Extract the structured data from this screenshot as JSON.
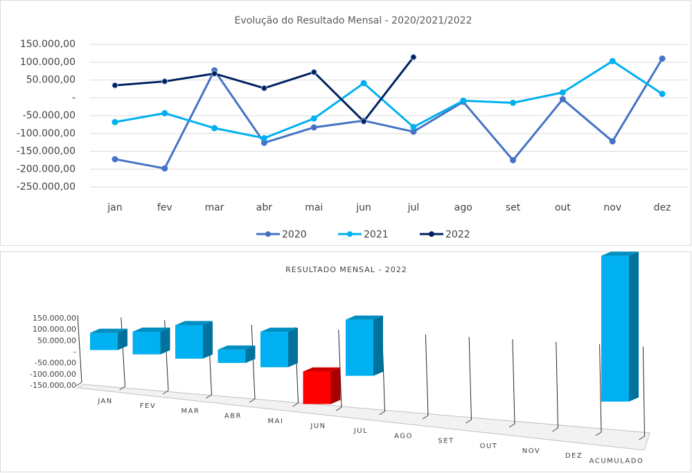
{
  "chart_data": [
    {
      "type": "line",
      "title": "Evolução do Resultado Mensal - 2020/2021/2022",
      "categories": [
        "jan",
        "fev",
        "mar",
        "abr",
        "mai",
        "jun",
        "jul",
        "ago",
        "set",
        "out",
        "nov",
        "dez"
      ],
      "series": [
        {
          "name": "2020",
          "color": "#4472c4",
          "values": [
            -172000,
            -198000,
            77000,
            -126000,
            -83000,
            -64000,
            -95000,
            -11000,
            -175000,
            -4000,
            -122000,
            110000
          ]
        },
        {
          "name": "2021",
          "color": "#00b0f0",
          "values": [
            -68000,
            -43000,
            -85000,
            -113000,
            -58000,
            41000,
            -82000,
            -8000,
            -14000,
            15000,
            103000,
            11000
          ]
        },
        {
          "name": "2022",
          "color": "#002060",
          "values": [
            35000,
            46000,
            68000,
            27000,
            72000,
            -66000,
            114000,
            null,
            null,
            null,
            null,
            null
          ]
        }
      ],
      "ylim": [
        -250000,
        150000
      ],
      "yticks": [
        {
          "value": -250000,
          "label": "-250.000,00"
        },
        {
          "value": -200000,
          "label": "-200.000,00"
        },
        {
          "value": -150000,
          "label": "-150.000,00"
        },
        {
          "value": -100000,
          "label": "-100.000,00"
        },
        {
          "value": -50000,
          "label": "-50.000,00"
        },
        {
          "value": 0,
          "label": "-"
        },
        {
          "value": 50000,
          "label": "50.000,00"
        },
        {
          "value": 100000,
          "label": "100.000,00"
        },
        {
          "value": 150000,
          "label": "150.000,00"
        }
      ],
      "grid": true,
      "legend": "bottom"
    },
    {
      "type": "bar3d",
      "title": "RESULTADO MENSAL - 2022",
      "categories": [
        "JAN",
        "FEV",
        "MAR",
        "ABR",
        "MAI",
        "JUN",
        "JUL",
        "AGO",
        "SET",
        "OUT",
        "NOV",
        "DEZ",
        "ACUMULADO"
      ],
      "values": [
        35000,
        46000,
        68000,
        27000,
        72000,
        -66000,
        114000,
        null,
        null,
        null,
        null,
        null,
        296000
      ],
      "color": "#00b0f0",
      "negative_color": "#ff0000",
      "ylim": [
        -150000,
        150000
      ],
      "yticks": [
        {
          "value": -150000,
          "label": "-150.000,00"
        },
        {
          "value": -100000,
          "label": "-100.000,00"
        },
        {
          "value": -50000,
          "label": "-50.000,00"
        },
        {
          "value": 0,
          "label": "-"
        },
        {
          "value": 50000,
          "label": "50.000,00"
        },
        {
          "value": 100000,
          "label": "100.000,00"
        },
        {
          "value": 150000,
          "label": "150.000,00"
        }
      ]
    }
  ]
}
